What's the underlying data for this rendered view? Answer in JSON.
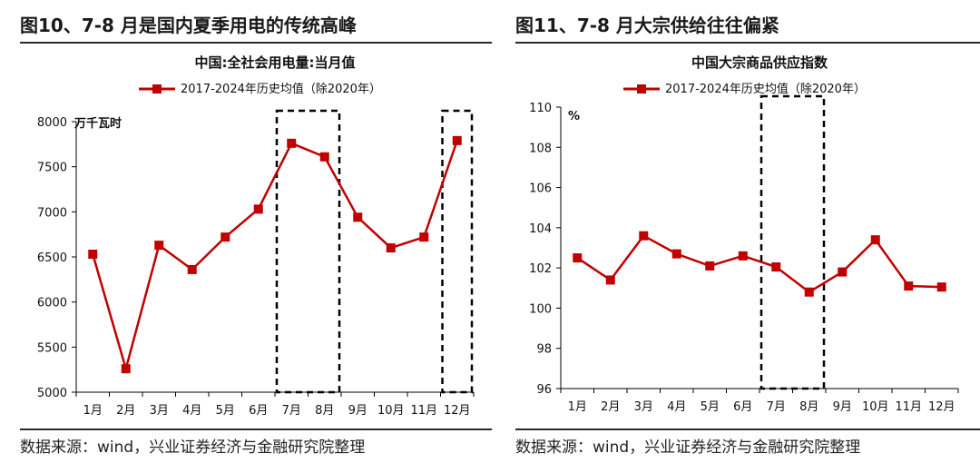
{
  "figures": [
    {
      "figure_title": "图10、7-8 月是国内夏季用电的传统高峰",
      "source": "数据来源：wind，兴业证券经济与金融研究院整理"
    },
    {
      "figure_title": "图11、7-8 月大宗供给往往偏紧",
      "source": "数据来源：wind，兴业证券经济与金融研究院整理"
    }
  ],
  "colors": {
    "series": "#c00000",
    "axis": "#000000",
    "box": "#000000"
  },
  "chart_data": [
    {
      "type": "line",
      "title": "中国:全社会用电量:当月值",
      "unit_label": "万千瓦时",
      "categories": [
        "1月",
        "2月",
        "3月",
        "4月",
        "5月",
        "6月",
        "7月",
        "8月",
        "9月",
        "10月",
        "11月",
        "12月"
      ],
      "series": [
        {
          "name": "2017-2024年历史均值（除2020年）",
          "values": [
            6530,
            5260,
            6630,
            6360,
            6720,
            7030,
            7760,
            7610,
            6940,
            6600,
            6720,
            7790
          ]
        }
      ],
      "ylim": [
        5000,
        8000
      ],
      "yticks": [
        "5000",
        "5500",
        "6000",
        "6500",
        "7000",
        "7500",
        "8000"
      ],
      "legend": "top",
      "grid": false,
      "highlight": [
        "7月-8月",
        "12月"
      ]
    },
    {
      "type": "line",
      "title": "中国大宗商品供应指数",
      "unit_label": "%",
      "categories": [
        "1月",
        "2月",
        "3月",
        "4月",
        "5月",
        "6月",
        "7月",
        "8月",
        "9月",
        "10月",
        "11月",
        "12月"
      ],
      "series": [
        {
          "name": "2017-2024年历史均值（除2020年）",
          "values": [
            102.5,
            101.4,
            103.6,
            102.7,
            102.1,
            102.6,
            102.05,
            100.8,
            101.8,
            103.4,
            101.1,
            101.05
          ]
        }
      ],
      "ylim": [
        96,
        110
      ],
      "yticks": [
        "96",
        "98",
        "100",
        "102",
        "104",
        "106",
        "108",
        "110"
      ],
      "legend": "top",
      "grid": false,
      "highlight": [
        "7月-8月"
      ]
    }
  ]
}
